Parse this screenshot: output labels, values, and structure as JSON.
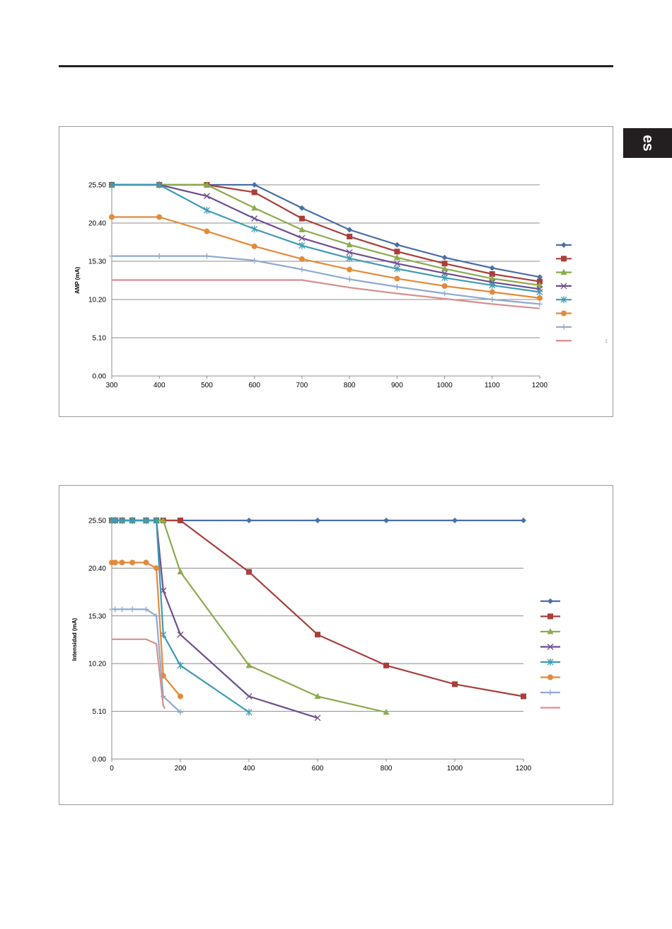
{
  "header": {
    "lang_tab": "es"
  },
  "colors": [
    "#4a6fa5",
    "#a93e3a",
    "#8cab4e",
    "#6e4f8e",
    "#3d9bb4",
    "#e38a3a",
    "#8fa9cf",
    "#d98e8e"
  ],
  "chart_data": [
    {
      "type": "line",
      "title": "",
      "xlabel": "",
      "ylabel": "AMP (mA)",
      "xlim": [
        300,
        1200
      ],
      "ylim": [
        0,
        25.5
      ],
      "xticks": [
        "300",
        "400",
        "500",
        "600",
        "700",
        "800",
        "900",
        "1000",
        "1100",
        "1200"
      ],
      "yticks": [
        "0.00",
        "5.10",
        "10.20",
        "15.30",
        "20.40",
        "25.50"
      ],
      "grid": true,
      "legend": "right",
      "series": [
        {
          "marker": "diamond",
          "x": [
            300,
            400,
            500,
            600,
            700,
            800,
            900,
            1000,
            1100,
            1200
          ],
          "y": [
            25.5,
            25.5,
            25.5,
            25.5,
            22.4,
            19.5,
            17.5,
            15.8,
            14.4,
            13.2
          ]
        },
        {
          "marker": "square",
          "x": [
            300,
            400,
            500,
            600,
            700,
            800,
            900,
            1000,
            1100,
            1200
          ],
          "y": [
            25.5,
            25.5,
            25.5,
            24.5,
            21.0,
            18.6,
            16.6,
            15.0,
            13.6,
            12.6
          ]
        },
        {
          "marker": "triangle",
          "x": [
            300,
            400,
            500,
            600,
            700,
            800,
            900,
            1000,
            1100,
            1200
          ],
          "y": [
            25.5,
            25.5,
            25.5,
            22.4,
            19.5,
            17.5,
            15.8,
            14.3,
            13.0,
            12.1
          ]
        },
        {
          "marker": "x",
          "x": [
            300,
            400,
            500,
            600,
            700,
            800,
            900,
            1000,
            1100,
            1200
          ],
          "y": [
            25.5,
            25.5,
            24.0,
            21.0,
            18.4,
            16.5,
            15.0,
            13.7,
            12.5,
            11.6
          ]
        },
        {
          "marker": "asterisk",
          "x": [
            300,
            400,
            500,
            600,
            700,
            800,
            900,
            1000,
            1100,
            1200
          ],
          "y": [
            25.5,
            25.5,
            22.1,
            19.6,
            17.4,
            15.7,
            14.3,
            13.1,
            12.1,
            11.2
          ]
        },
        {
          "marker": "circle",
          "x": [
            300,
            400,
            500,
            600,
            700,
            800,
            900,
            1000,
            1100,
            1200
          ],
          "y": [
            21.2,
            21.2,
            19.3,
            17.3,
            15.6,
            14.2,
            13.0,
            12.0,
            11.2,
            10.4
          ]
        },
        {
          "marker": "plus",
          "x": [
            300,
            400,
            500,
            600,
            700,
            800,
            900,
            1000,
            1100,
            1200
          ],
          "y": [
            16.0,
            16.0,
            16.0,
            15.4,
            14.2,
            12.9,
            11.9,
            11.0,
            10.2,
            9.6
          ]
        },
        {
          "marker": "none",
          "x": [
            300,
            400,
            500,
            600,
            700,
            800,
            900,
            1000,
            1100,
            1200
          ],
          "y": [
            12.8,
            12.8,
            12.8,
            12.8,
            12.8,
            11.8,
            11.0,
            10.3,
            9.6,
            9.0
          ]
        }
      ]
    },
    {
      "type": "line",
      "title": "",
      "xlabel": "",
      "ylabel": "Intensidad (mA)",
      "xlim": [
        0,
        1200
      ],
      "ylim": [
        0,
        25.5
      ],
      "xticks": [
        "0",
        "200",
        "400",
        "600",
        "800",
        "1000",
        "1200"
      ],
      "yticks": [
        "0.00",
        "5.10",
        "10.20",
        "15.30",
        "20.40",
        "25.50"
      ],
      "grid": true,
      "legend": "right",
      "series": [
        {
          "marker": "diamond",
          "x": [
            0,
            10,
            30,
            60,
            100,
            130,
            150,
            200,
            400,
            600,
            800,
            1000,
            1200
          ],
          "y": [
            25.5,
            25.5,
            25.5,
            25.5,
            25.5,
            25.5,
            25.5,
            25.5,
            25.5,
            25.5,
            25.5,
            25.5,
            25.5
          ]
        },
        {
          "marker": "square",
          "x": [
            0,
            10,
            30,
            60,
            100,
            130,
            150,
            200,
            400,
            600,
            800,
            1000,
            1200
          ],
          "y": [
            25.5,
            25.5,
            25.5,
            25.5,
            25.5,
            25.5,
            25.5,
            25.5,
            20.0,
            13.3,
            10.0,
            8.0,
            6.7
          ]
        },
        {
          "marker": "triangle",
          "x": [
            0,
            10,
            30,
            60,
            100,
            130,
            150,
            200,
            400,
            600,
            800
          ],
          "y": [
            25.5,
            25.5,
            25.5,
            25.5,
            25.5,
            25.5,
            25.5,
            20.0,
            10.0,
            6.7,
            5.0
          ]
        },
        {
          "marker": "x",
          "x": [
            0,
            10,
            30,
            60,
            100,
            130,
            150,
            200,
            400,
            600
          ],
          "y": [
            25.5,
            25.5,
            25.5,
            25.5,
            25.5,
            25.5,
            18.0,
            13.3,
            6.7,
            4.4
          ]
        },
        {
          "marker": "asterisk",
          "x": [
            0,
            10,
            30,
            60,
            100,
            130,
            150,
            200,
            400
          ],
          "y": [
            25.5,
            25.5,
            25.5,
            25.5,
            25.5,
            25.5,
            13.3,
            10.0,
            5.0
          ]
        },
        {
          "marker": "circle",
          "x": [
            0,
            10,
            30,
            60,
            100,
            130,
            150,
            200
          ],
          "y": [
            21.0,
            21.0,
            21.0,
            21.0,
            21.0,
            20.4,
            8.9,
            6.7
          ]
        },
        {
          "marker": "plus",
          "x": [
            0,
            10,
            30,
            60,
            100,
            130,
            150,
            200
          ],
          "y": [
            16.0,
            16.0,
            16.0,
            16.0,
            16.0,
            15.3,
            6.7,
            5.0
          ]
        },
        {
          "marker": "none",
          "x": [
            0,
            10,
            30,
            60,
            100,
            130,
            150,
            155
          ],
          "y": [
            12.8,
            12.8,
            12.8,
            12.8,
            12.8,
            12.3,
            5.7,
            5.4
          ]
        }
      ]
    }
  ]
}
